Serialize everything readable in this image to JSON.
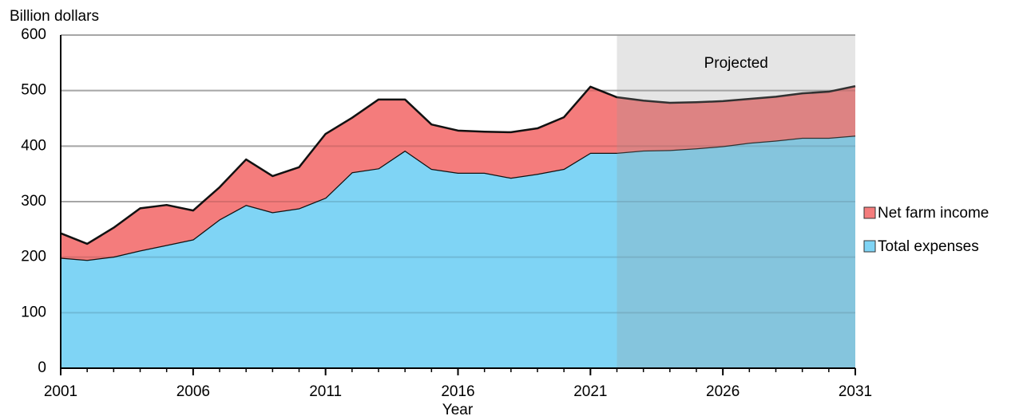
{
  "chart_data": {
    "type": "stacked_area",
    "y_axis_label": "Billion dollars",
    "x_axis_label": "Year",
    "x": [
      2001,
      2002,
      2003,
      2004,
      2005,
      2006,
      2007,
      2008,
      2009,
      2010,
      2011,
      2012,
      2013,
      2014,
      2015,
      2016,
      2017,
      2018,
      2019,
      2020,
      2021,
      2022,
      2023,
      2024,
      2025,
      2026,
      2027,
      2028,
      2029,
      2030,
      2031
    ],
    "series": [
      {
        "name": "Total expenses",
        "color": "#7fd4f5",
        "values": [
          199,
          195,
          201,
          212,
          222,
          232,
          268,
          294,
          281,
          288,
          307,
          353,
          360,
          392,
          359,
          352,
          352,
          343,
          350,
          359,
          388,
          388,
          392,
          393,
          396,
          400,
          406,
          410,
          415,
          415,
          419
        ]
      },
      {
        "name": "Net farm income",
        "color": "#f47c7c",
        "values": [
          44,
          29,
          52,
          76,
          72,
          52,
          58,
          82,
          65,
          74,
          115,
          98,
          124,
          92,
          80,
          76,
          74,
          82,
          82,
          93,
          119,
          100,
          90,
          85,
          83,
          81,
          79,
          79,
          80,
          83,
          89
        ]
      }
    ],
    "xlim": [
      2001,
      2031
    ],
    "xticks": [
      2001,
      2006,
      2011,
      2016,
      2021,
      2026,
      2031
    ],
    "ylim": [
      0,
      600
    ],
    "yticks": [
      0,
      100,
      200,
      300,
      400,
      500,
      600
    ],
    "grid": true,
    "legend": "right",
    "projected_region": {
      "label": "Projected",
      "start": 2022,
      "end": 2031
    }
  }
}
